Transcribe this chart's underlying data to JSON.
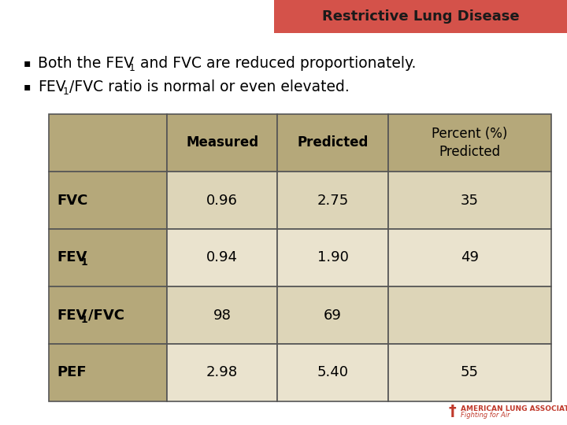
{
  "title": "Restrictive Lung Disease",
  "title_bg": "#d4524a",
  "title_fg": "#1a1a1a",
  "background": "#ffffff",
  "table_header_bg": "#b5a87a",
  "table_row1_bg": "#ddd5b8",
  "table_row2_bg": "#eae3ce",
  "table_border": "#555555",
  "col_headers": [
    "Measured",
    "Predicted",
    "Percent (%)\nPredicted"
  ],
  "table_data": [
    [
      "FVC",
      "0.96",
      "2.75",
      "35"
    ],
    [
      "FEV1",
      "0.94",
      "1.90",
      "49"
    ],
    [
      "FEV1/FVC",
      "98",
      "69",
      ""
    ],
    [
      "PEF",
      "2.98",
      "5.40",
      "55"
    ]
  ],
  "ala_color": "#c0392b"
}
